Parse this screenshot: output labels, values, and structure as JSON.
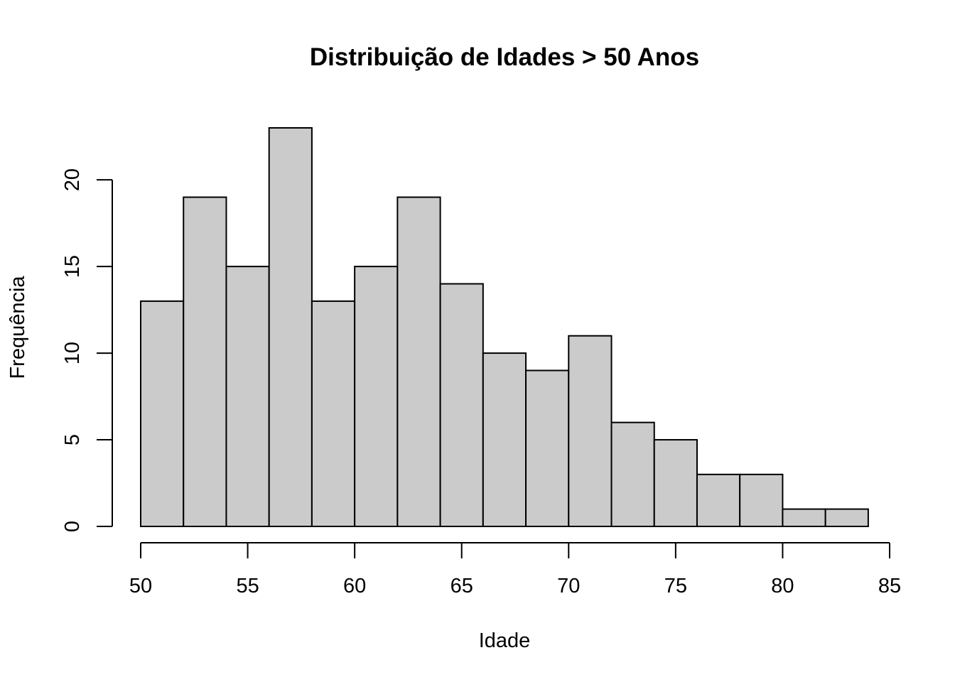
{
  "chart_data": {
    "type": "bar",
    "title": "Distribuição de Idades > 50 Anos",
    "xlabel": "Idade",
    "ylabel": "Frequência",
    "bins": [
      {
        "start": 50,
        "end": 52,
        "count": 13
      },
      {
        "start": 52,
        "end": 54,
        "count": 19
      },
      {
        "start": 54,
        "end": 56,
        "count": 15
      },
      {
        "start": 56,
        "end": 58,
        "count": 23
      },
      {
        "start": 58,
        "end": 60,
        "count": 13
      },
      {
        "start": 60,
        "end": 62,
        "count": 15
      },
      {
        "start": 62,
        "end": 64,
        "count": 19
      },
      {
        "start": 64,
        "end": 66,
        "count": 14
      },
      {
        "start": 66,
        "end": 68,
        "count": 10
      },
      {
        "start": 68,
        "end": 70,
        "count": 9
      },
      {
        "start": 70,
        "end": 72,
        "count": 11
      },
      {
        "start": 72,
        "end": 74,
        "count": 6
      },
      {
        "start": 74,
        "end": 76,
        "count": 5
      },
      {
        "start": 76,
        "end": 78,
        "count": 3
      },
      {
        "start": 78,
        "end": 80,
        "count": 3
      },
      {
        "start": 80,
        "end": 82,
        "count": 1
      },
      {
        "start": 82,
        "end": 84,
        "count": 1
      }
    ],
    "xlim": [
      50,
      85
    ],
    "ylim": [
      0,
      23
    ],
    "xticks": [
      50,
      55,
      60,
      65,
      70,
      75,
      80,
      85
    ],
    "yticks": [
      0,
      5,
      10,
      15,
      20
    ],
    "grid": false,
    "bar_color": "#cbcbcb",
    "edge_color": "#000000"
  }
}
